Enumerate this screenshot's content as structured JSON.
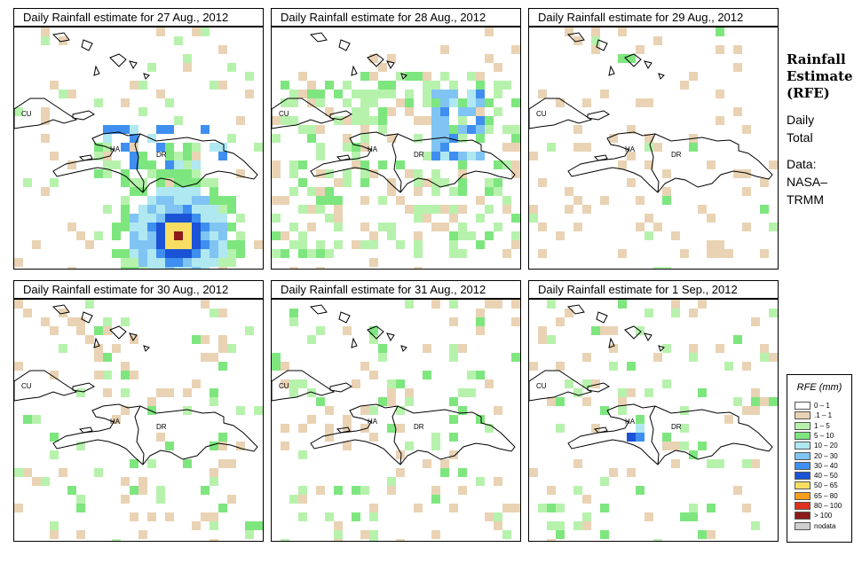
{
  "panels": [
    {
      "title": "Daily Rainfall estimate for  27 Aug., 2012",
      "date": "27 Aug., 2012",
      "rain_level": "heavy"
    },
    {
      "title": "Daily Rainfall estimate for  28 Aug., 2012",
      "date": "28 Aug., 2012",
      "rain_level": "moderate"
    },
    {
      "title": "Daily Rainfall estimate for  29 Aug., 2012",
      "date": "29 Aug., 2012",
      "rain_level": "light"
    },
    {
      "title": "Daily Rainfall estimate for  30 Aug., 2012",
      "date": "30 Aug., 2012",
      "rain_level": "light"
    },
    {
      "title": "Daily Rainfall estimate for  31 Aug., 2012",
      "date": "31 Aug., 2012",
      "rain_level": "light"
    },
    {
      "title": "Daily Rainfall estimate for  1 Sep., 2012",
      "date": "1 Sep., 2012",
      "rain_level": "light"
    }
  ],
  "map_labels": {
    "cuba": "CU",
    "haiti": "HA",
    "dominican_republic": "DR"
  },
  "side_panel": {
    "title_line1": "Rainfall",
    "title_line2": "Estimate",
    "title_line3": "(RFE)",
    "daily_line1": "Daily",
    "daily_line2": "Total",
    "data_line1": "Data:",
    "data_line2": "NASA–",
    "data_line3": "TRMM"
  },
  "legend": {
    "title": "RFE (mm)",
    "items": [
      {
        "label": "0 – 1",
        "color": "#ffffff"
      },
      {
        "label": ".1 – 1",
        "color": "#e9d3b4"
      },
      {
        "label": "1 – 5",
        "color": "#b7f2ad"
      },
      {
        "label": "5 – 10",
        "color": "#7ee67e"
      },
      {
        "label": "10 – 20",
        "color": "#b0e8f2"
      },
      {
        "label": "20 – 30",
        "color": "#7fc4f2"
      },
      {
        "label": "30 – 40",
        "color": "#3f8ff0"
      },
      {
        "label": "40 – 50",
        "color": "#1a53d6"
      },
      {
        "label": "50 – 65",
        "color": "#f7de63"
      },
      {
        "label": "65 – 80",
        "color": "#f79e1e"
      },
      {
        "label": "80 – 100",
        "color": "#e0301e"
      },
      {
        "label": "> 100",
        "color": "#8c1a1a"
      },
      {
        "label": "nodata",
        "color": "#cfcfcf"
      }
    ]
  }
}
